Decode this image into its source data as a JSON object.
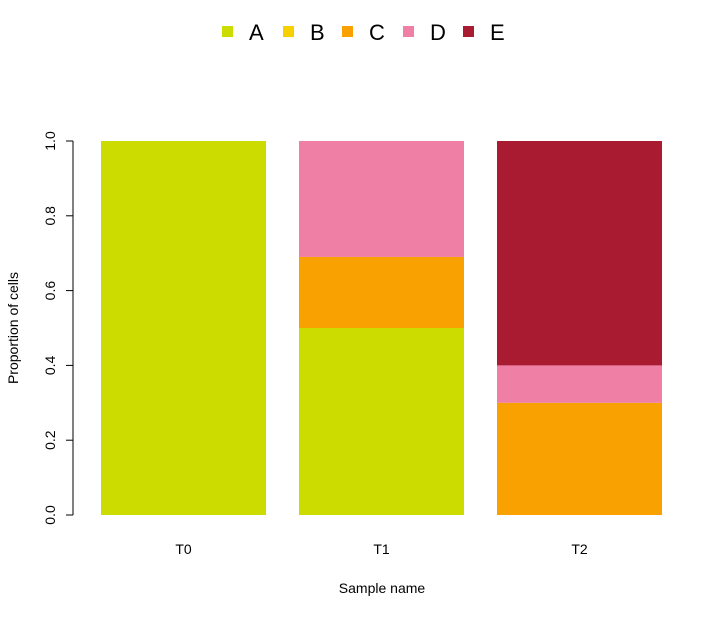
{
  "chart_data": {
    "type": "bar",
    "stacked": true,
    "categories": [
      "T0",
      "T1",
      "T2"
    ],
    "series": [
      {
        "name": "A",
        "color": "#cddc00",
        "values": [
          1.0,
          0.5,
          0.0
        ]
      },
      {
        "name": "B",
        "color": "#f7d000",
        "values": [
          0.0,
          0.0,
          0.0
        ]
      },
      {
        "name": "C",
        "color": "#f8a100",
        "values": [
          0.0,
          0.19,
          0.3
        ]
      },
      {
        "name": "D",
        "color": "#ef7fa5",
        "values": [
          0.0,
          0.31,
          0.1
        ]
      },
      {
        "name": "E",
        "color": "#a81b31",
        "values": [
          0.0,
          0.0,
          0.6
        ]
      }
    ],
    "xlabel": "Sample name",
    "ylabel": "Proportion of cells",
    "ylim": [
      0,
      1
    ],
    "yticks": [
      "0.0",
      "0.2",
      "0.4",
      "0.6",
      "0.8",
      "1.0"
    ],
    "legend_position": "top",
    "grid": false
  }
}
